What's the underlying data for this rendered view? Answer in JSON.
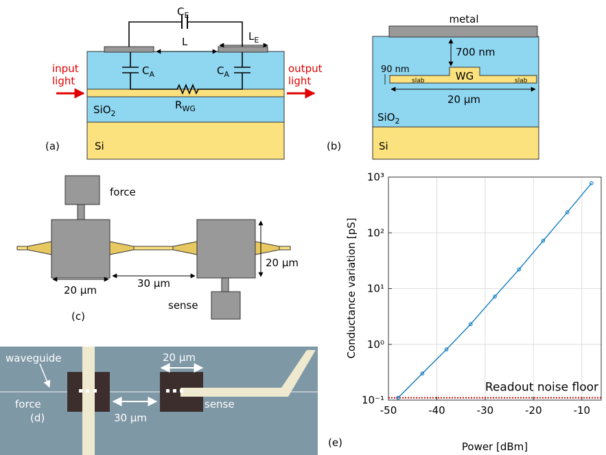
{
  "panels": {
    "a": {
      "label": "(a)",
      "ce": {
        "main": "C",
        "sub": "E"
      },
      "l": "L",
      "le": {
        "main": "L",
        "sub": "E"
      },
      "ca_left": {
        "main": "C",
        "sub": "A"
      },
      "ca_right": {
        "main": "C",
        "sub": "A"
      },
      "rwg": {
        "main": "R",
        "sub": "WG"
      },
      "input": [
        "input",
        "light"
      ],
      "output": [
        "output",
        "light"
      ],
      "sio2": {
        "main": "SiO",
        "sub": "2"
      },
      "si": "Si"
    },
    "b": {
      "label": "(b)",
      "metal": "metal",
      "thickness": "700 nm",
      "slab_height": "90 nm",
      "wg": "WG",
      "slab_left": "slab",
      "slab_right": "slab",
      "width": "20 µm",
      "sio2": {
        "main": "SiO",
        "sub": "2"
      },
      "si": "Si"
    },
    "c": {
      "label": "(c)",
      "force": "force",
      "sense": "sense",
      "pad_width": "20 µm",
      "gap": "30 µm",
      "pad_height": "20 µm"
    },
    "d": {
      "label": "(d)",
      "waveguide": "waveguide",
      "force": "force",
      "sense": "sense",
      "pad_width": "20 µm",
      "gap": "30 µm"
    }
  },
  "chart_data": {
    "type": "line",
    "panel_label": "(e)",
    "xlabel": "Power [dBm]",
    "ylabel": "Conductance variation [pS]",
    "x": [
      -48,
      -43,
      -38,
      -33,
      -28,
      -23,
      -18,
      -13,
      -8
    ],
    "series": [
      {
        "color": "#0072bd",
        "values": [
          0.11,
          0.3,
          0.81,
          2.3,
          7.2,
          22,
          72,
          234,
          776
        ]
      }
    ],
    "xlim": [
      -50,
      -6
    ],
    "xticks": [
      -50,
      -40,
      -30,
      -20,
      -10
    ],
    "ylim": [
      0.1,
      1000
    ],
    "yscale": "log",
    "yticks": [
      {
        "value": 0.1,
        "label": "10⁻¹"
      },
      {
        "value": 1,
        "label": "10⁰"
      },
      {
        "value": 10,
        "label": "10¹"
      },
      {
        "value": 100,
        "label": "10²"
      },
      {
        "value": 1000,
        "label": "10³"
      }
    ],
    "grid": true,
    "hline": {
      "value": 0.11,
      "color": "#cc0000",
      "label": "Readout noise floor"
    }
  }
}
